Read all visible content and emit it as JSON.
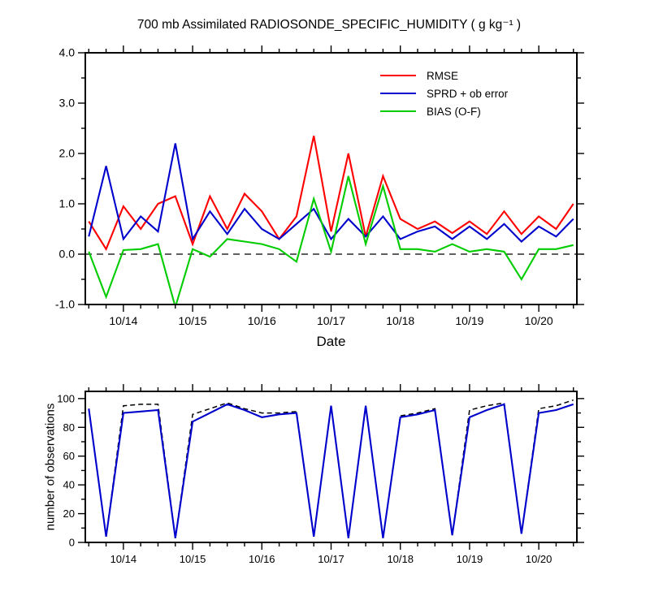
{
  "title": "700 mb Assimilated RADIOSONDE_SPECIFIC_HUMIDITY ( g kg⁻¹ )",
  "chart_data": [
    {
      "type": "line",
      "name": "humidity-stats-chart",
      "title": "700 mb Assimilated RADIOSONDE_SPECIFIC_HUMIDITY ( g kg⁻¹ )",
      "xlabel": "Date",
      "ylabel": "",
      "xlim": [
        13.45,
        20.55
      ],
      "ylim": [
        -1.0,
        4.0
      ],
      "zero_line": true,
      "legend_position": "upper-center-right",
      "yticks": {
        "major": [
          -1.0,
          0.0,
          1.0,
          2.0,
          3.0,
          4.0
        ],
        "labels": [
          "-1.0",
          "0.0",
          "1.0",
          "2.0",
          "3.0",
          "4.0"
        ],
        "minor_step": 0.5
      },
      "xticks": {
        "major": [
          14,
          15,
          16,
          17,
          18,
          19,
          20
        ],
        "labels": [
          "10/14",
          "10/15",
          "10/16",
          "10/17",
          "10/18",
          "10/19",
          "10/20"
        ],
        "minor_step": 0.25
      },
      "x": [
        13.5,
        13.75,
        14.0,
        14.25,
        14.5,
        14.75,
        15.0,
        15.25,
        15.5,
        15.75,
        16.0,
        16.25,
        16.5,
        16.75,
        17.0,
        17.25,
        17.5,
        17.75,
        18.0,
        18.25,
        18.5,
        18.75,
        19.0,
        19.25,
        19.5,
        19.75,
        20.0,
        20.25,
        20.5
      ],
      "series": [
        {
          "name": "RMSE",
          "color": "#ff0000",
          "dash": false,
          "values": [
            0.65,
            0.1,
            0.95,
            0.5,
            1.0,
            1.15,
            0.2,
            1.15,
            0.5,
            1.2,
            0.85,
            0.3,
            0.75,
            2.35,
            0.45,
            2.0,
            0.35,
            1.55,
            0.7,
            0.5,
            0.65,
            0.42,
            0.65,
            0.4,
            0.85,
            0.4,
            0.75,
            0.5,
            1.0
          ]
        },
        {
          "name": "SPRD + ob error",
          "color": "#0000cc",
          "dash": false,
          "values": [
            0.35,
            1.75,
            0.3,
            0.75,
            0.45,
            2.2,
            0.3,
            0.85,
            0.4,
            0.9,
            0.5,
            0.3,
            0.6,
            0.9,
            0.3,
            0.7,
            0.35,
            0.75,
            0.3,
            0.45,
            0.55,
            0.3,
            0.55,
            0.3,
            0.6,
            0.25,
            0.55,
            0.35,
            0.7
          ]
        },
        {
          "name": "BIAS (O-F)",
          "color": "#00cc00",
          "dash": false,
          "values": [
            0.05,
            -0.85,
            0.08,
            0.1,
            0.2,
            -1.05,
            0.1,
            -0.05,
            0.3,
            0.25,
            0.2,
            0.1,
            -0.15,
            1.1,
            0.05,
            1.55,
            0.2,
            1.35,
            0.1,
            0.1,
            0.05,
            0.2,
            0.05,
            0.1,
            0.05,
            -0.5,
            0.1,
            0.1,
            0.18
          ]
        }
      ]
    },
    {
      "type": "line",
      "name": "observation-count-chart",
      "title": "",
      "xlabel": "",
      "ylabel": "number of observations",
      "xlim": [
        13.45,
        20.55
      ],
      "ylim": [
        0,
        105
      ],
      "zero_line": false,
      "yticks": {
        "major": [
          0,
          20,
          40,
          60,
          80,
          100
        ],
        "labels": [
          "0",
          "20",
          "40",
          "60",
          "80",
          "100"
        ],
        "minor_step": 10
      },
      "xticks": {
        "major": [
          14,
          15,
          16,
          17,
          18,
          19,
          20
        ],
        "labels": [
          "10/14",
          "10/15",
          "10/16",
          "10/17",
          "10/18",
          "10/19",
          "10/20"
        ],
        "minor_step": 0.25
      },
      "x": [
        13.5,
        13.75,
        14.0,
        14.25,
        14.5,
        14.75,
        15.0,
        15.25,
        15.5,
        15.75,
        16.0,
        16.25,
        16.5,
        16.75,
        17.0,
        17.25,
        17.5,
        17.75,
        18.0,
        18.25,
        18.5,
        18.75,
        19.0,
        19.25,
        19.5,
        19.75,
        20.0,
        20.25,
        20.5
      ],
      "series": [
        {
          "name": "obs-dashed",
          "color": "#000000",
          "dash": true,
          "values": [
            93,
            4,
            95,
            96,
            96,
            3,
            89,
            93,
            97,
            93,
            90,
            90,
            91,
            4,
            95,
            3,
            95,
            3,
            88,
            90,
            93,
            5,
            92,
            95,
            97,
            6,
            93,
            95,
            99
          ]
        },
        {
          "name": "obs-solid",
          "color": "#0000cc",
          "dash": false,
          "values": [
            93,
            4,
            90,
            91,
            92,
            3,
            84,
            90,
            96,
            92,
            87,
            89,
            90,
            4,
            95,
            3,
            95,
            3,
            87,
            89,
            92,
            5,
            87,
            92,
            96,
            6,
            90,
            92,
            96
          ]
        }
      ]
    }
  ]
}
